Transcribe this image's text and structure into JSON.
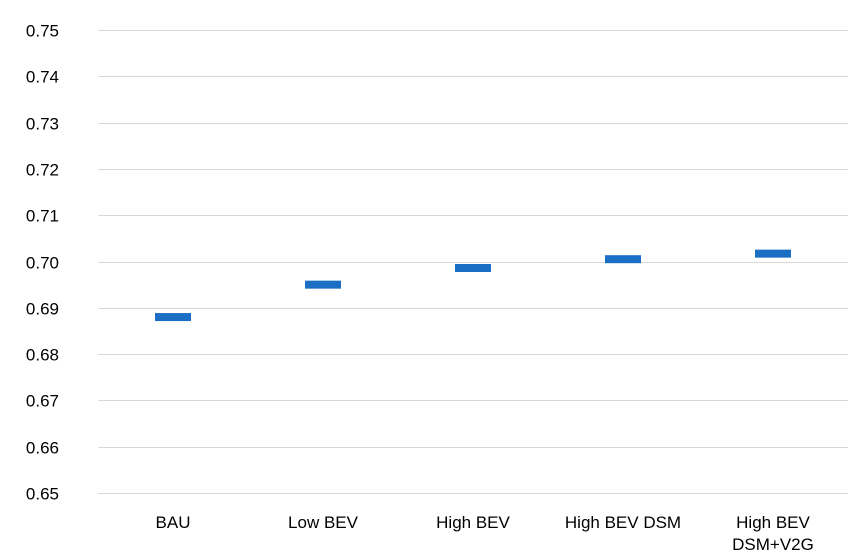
{
  "chart_data": {
    "type": "scatter",
    "marker": "horizontal-dash",
    "title": "",
    "xlabel": "",
    "ylabel": "",
    "categories": [
      "BAU",
      "Low BEV",
      "High BEV",
      "High BEV DSM",
      "High BEV DSM+V2G"
    ],
    "category_lines": [
      [
        "BAU"
      ],
      [
        "Low BEV"
      ],
      [
        "High BEV"
      ],
      [
        "High BEV DSM"
      ],
      [
        "High BEV",
        "DSM+V2G"
      ]
    ],
    "values": [
      0.688,
      0.695,
      0.6986,
      0.7005,
      0.7017
    ],
    "ylim": [
      0.65,
      0.75
    ],
    "yticks": [
      "0.65",
      "0.66",
      "0.67",
      "0.68",
      "0.69",
      "0.70",
      "0.71",
      "0.72",
      "0.73",
      "0.74",
      "0.75"
    ],
    "grid": true,
    "legend": "none",
    "colors": {
      "marker": "#1a6fc4",
      "grid": "#d9d9d9",
      "text": "#000000"
    }
  }
}
